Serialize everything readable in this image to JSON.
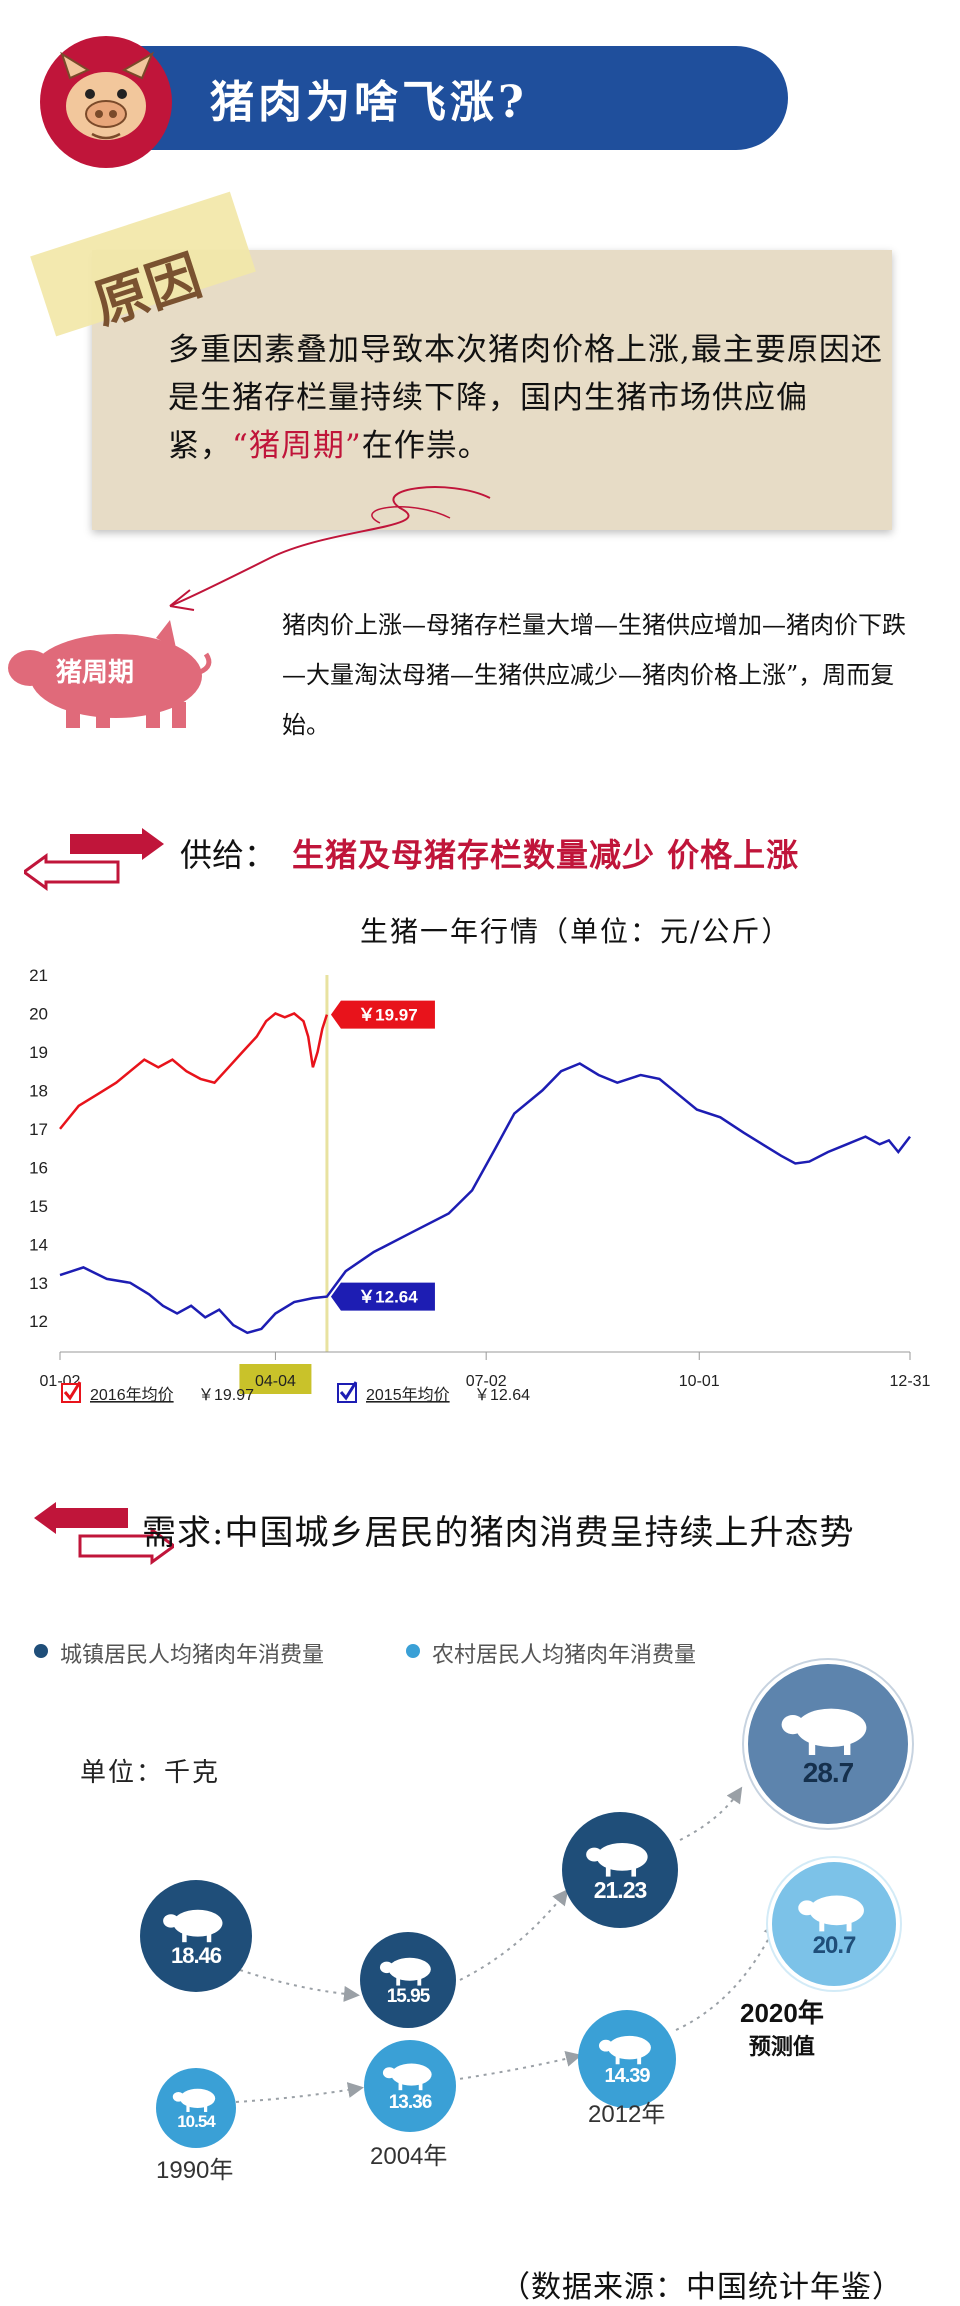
{
  "header": {
    "title": "猪肉为啥飞涨?"
  },
  "reason": {
    "label": "原因",
    "text_before": "多重因素叠加导致本次猪肉价格上涨,最主要原因还是生猪存栏量持续下降，国内生猪市场供应偏紧，",
    "highlight": "“猪周期”",
    "text_after": "在作祟。"
  },
  "cycle": {
    "pig_label": "猪周期",
    "text": "猪肉价上涨—母猪存栏量大增—生猪供应增加—猪肉价下跌—大量淘汰母猪—生猪供应减少—猪肉价格上涨”，周而复始。"
  },
  "supply": {
    "label": "供给：",
    "headline": "生猪及母猪存栏数量减少 价格上涨",
    "chart_title": "生猪一年行情（单位：元/公斤）"
  },
  "chart_data": {
    "type": "line",
    "x_ticks": [
      "01-02",
      "04-04",
      "07-02",
      "10-01",
      "12-31"
    ],
    "y_ticks": [
      12,
      13,
      14,
      15,
      16,
      17,
      18,
      19,
      20,
      21
    ],
    "ylim": [
      11.2,
      21
    ],
    "x_range_days": [
      0,
      363
    ],
    "highlight_x": "04-04",
    "series": [
      {
        "name": "2016年均价",
        "color": "#e8131b",
        "end_label": "￥19.97",
        "points": [
          [
            0,
            17.0
          ],
          [
            8,
            17.6
          ],
          [
            16,
            17.9
          ],
          [
            24,
            18.2
          ],
          [
            30,
            18.5
          ],
          [
            36,
            18.8
          ],
          [
            42,
            18.6
          ],
          [
            48,
            18.8
          ],
          [
            54,
            18.5
          ],
          [
            60,
            18.3
          ],
          [
            66,
            18.2
          ],
          [
            72,
            18.6
          ],
          [
            78,
            19.0
          ],
          [
            84,
            19.4
          ],
          [
            88,
            19.8
          ],
          [
            92,
            20.0
          ],
          [
            96,
            19.9
          ],
          [
            100,
            20.0
          ],
          [
            104,
            19.8
          ],
          [
            106,
            19.4
          ],
          [
            108,
            18.6
          ],
          [
            110,
            19.0
          ],
          [
            112,
            19.6
          ],
          [
            114,
            19.97
          ]
        ]
      },
      {
        "name": "2015年均价",
        "color": "#1d1db3",
        "end_label": "￥12.64",
        "points": [
          [
            0,
            13.2
          ],
          [
            10,
            13.4
          ],
          [
            20,
            13.1
          ],
          [
            30,
            13.0
          ],
          [
            38,
            12.7
          ],
          [
            44,
            12.4
          ],
          [
            50,
            12.2
          ],
          [
            56,
            12.4
          ],
          [
            62,
            12.1
          ],
          [
            68,
            12.3
          ],
          [
            74,
            11.9
          ],
          [
            80,
            11.7
          ],
          [
            86,
            11.8
          ],
          [
            92,
            12.2
          ],
          [
            100,
            12.5
          ],
          [
            108,
            12.6
          ],
          [
            114,
            12.64
          ],
          [
            122,
            13.3
          ],
          [
            134,
            13.8
          ],
          [
            150,
            14.3
          ],
          [
            166,
            14.8
          ],
          [
            176,
            15.4
          ],
          [
            186,
            16.5
          ],
          [
            194,
            17.4
          ],
          [
            206,
            18.0
          ],
          [
            214,
            18.5
          ],
          [
            222,
            18.7
          ],
          [
            230,
            18.4
          ],
          [
            238,
            18.2
          ],
          [
            248,
            18.4
          ],
          [
            256,
            18.3
          ],
          [
            264,
            17.9
          ],
          [
            272,
            17.5
          ],
          [
            282,
            17.3
          ],
          [
            292,
            16.9
          ],
          [
            300,
            16.6
          ],
          [
            308,
            16.3
          ],
          [
            314,
            16.1
          ],
          [
            320,
            16.15
          ],
          [
            328,
            16.4
          ],
          [
            336,
            16.6
          ],
          [
            344,
            16.8
          ],
          [
            350,
            16.6
          ],
          [
            354,
            16.7
          ],
          [
            358,
            16.4
          ],
          [
            363,
            16.8
          ]
        ]
      }
    ],
    "legend": [
      {
        "label": "2016年均价",
        "value": "￥19.97"
      },
      {
        "label": "2015年均价",
        "value": "￥12.64"
      }
    ]
  },
  "demand": {
    "label": "需求:中国城乡居民的猪肉消费呈持续上升态势",
    "legend_urban": "城镇居民人均猪肉年消费量",
    "legend_rural": "农村居民人均猪肉年消费量",
    "unit": "单位：千克",
    "colors": {
      "urban": "#1f4e79",
      "rural": "#3aa0d6",
      "urban_forecast": "#5d84ad",
      "rural_forecast": "#7cc2e8"
    },
    "urban": [
      "18.46",
      "15.95",
      "21.23",
      "28.7"
    ],
    "rural": [
      "10.54",
      "13.36",
      "14.39",
      "20.7"
    ],
    "years": [
      "1990年",
      "2004年",
      "2012年"
    ],
    "forecast_line1": "2020年",
    "forecast_line2": "预测值"
  },
  "source": "（数据来源：中国统计年鉴）"
}
